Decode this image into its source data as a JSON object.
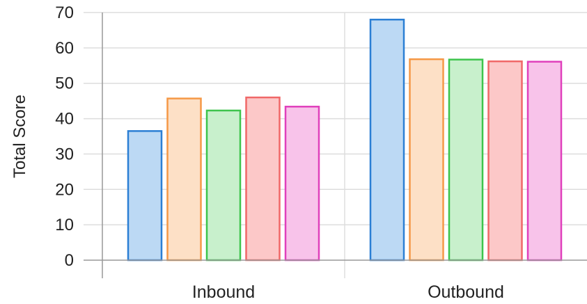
{
  "chart_data": {
    "type": "bar",
    "title": "",
    "xlabel": "",
    "ylabel": "Total Score",
    "ylim": [
      0,
      70
    ],
    "yticks": [
      0,
      10,
      20,
      30,
      40,
      50,
      60,
      70
    ],
    "categories": [
      "Inbound",
      "Outbound"
    ],
    "series": [
      {
        "values": [
          36.5,
          68.0
        ],
        "fill": "#bcd9f4",
        "stroke": "#2b7fd4"
      },
      {
        "values": [
          45.7,
          56.8
        ],
        "fill": "#fde0c6",
        "stroke": "#f59846"
      },
      {
        "values": [
          42.3,
          56.7
        ],
        "fill": "#c8f0cc",
        "stroke": "#3dc44c"
      },
      {
        "values": [
          46.0,
          56.2
        ],
        "fill": "#fcc8c8",
        "stroke": "#f06868"
      },
      {
        "values": [
          43.4,
          56.1
        ],
        "fill": "#f8c3ea",
        "stroke": "#e040bc"
      }
    ],
    "grid": true,
    "legend": "none"
  }
}
